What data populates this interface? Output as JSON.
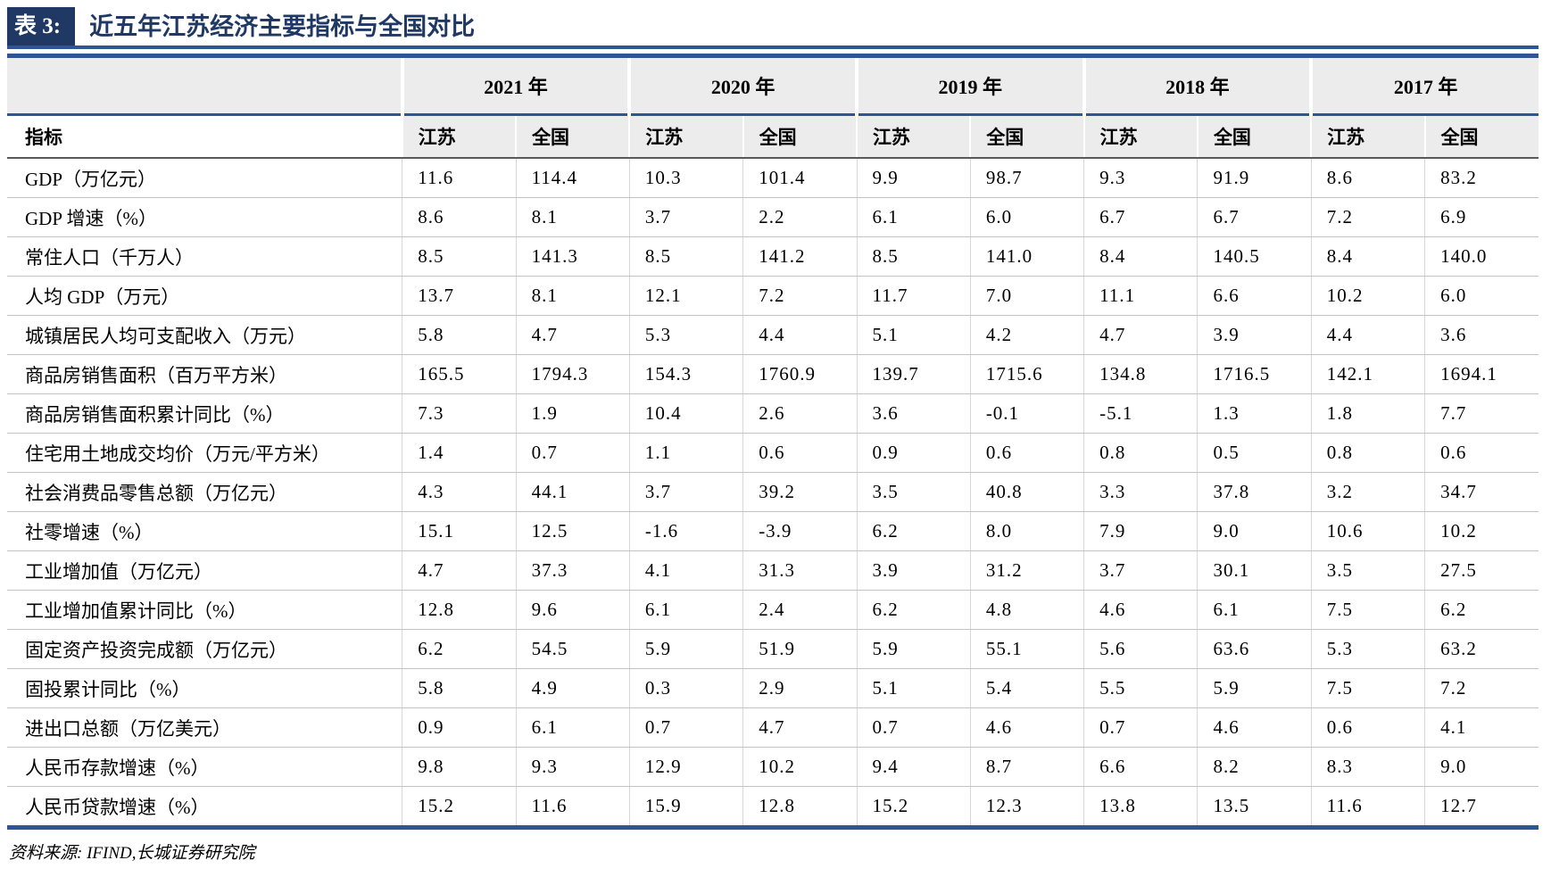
{
  "header": {
    "tag": "表 3:",
    "title": "近五年江苏经济主要指标与全国对比"
  },
  "table": {
    "years": [
      "2021 年",
      "2020 年",
      "2019 年",
      "2018 年",
      "2017 年"
    ],
    "indicator_header": "指标",
    "region_headers": [
      "江苏",
      "全国",
      "江苏",
      "全国",
      "江苏",
      "全国",
      "江苏",
      "全国",
      "江苏",
      "全国"
    ],
    "rows": [
      {
        "indicator": "GDP（万亿元）",
        "values": [
          "11.6",
          "114.4",
          "10.3",
          "101.4",
          "9.9",
          "98.7",
          "9.3",
          "91.9",
          "8.6",
          "83.2"
        ]
      },
      {
        "indicator": "GDP 增速（%）",
        "values": [
          "8.6",
          "8.1",
          "3.7",
          "2.2",
          "6.1",
          "6.0",
          "6.7",
          "6.7",
          "7.2",
          "6.9"
        ]
      },
      {
        "indicator": "常住人口（千万人）",
        "values": [
          "8.5",
          "141.3",
          "8.5",
          "141.2",
          "8.5",
          "141.0",
          "8.4",
          "140.5",
          "8.4",
          "140.0"
        ]
      },
      {
        "indicator": "人均 GDP（万元）",
        "values": [
          "13.7",
          "8.1",
          "12.1",
          "7.2",
          "11.7",
          "7.0",
          "11.1",
          "6.6",
          "10.2",
          "6.0"
        ]
      },
      {
        "indicator": "城镇居民人均可支配收入（万元）",
        "values": [
          "5.8",
          "4.7",
          "5.3",
          "4.4",
          "5.1",
          "4.2",
          "4.7",
          "3.9",
          "4.4",
          "3.6"
        ]
      },
      {
        "indicator": "商品房销售面积（百万平方米）",
        "values": [
          "165.5",
          "1794.3",
          "154.3",
          "1760.9",
          "139.7",
          "1715.6",
          "134.8",
          "1716.5",
          "142.1",
          "1694.1"
        ]
      },
      {
        "indicator": "商品房销售面积累计同比（%）",
        "values": [
          "7.3",
          "1.9",
          "10.4",
          "2.6",
          "3.6",
          "-0.1",
          "-5.1",
          "1.3",
          "1.8",
          "7.7"
        ]
      },
      {
        "indicator": "住宅用土地成交均价（万元/平方米）",
        "values": [
          "1.4",
          "0.7",
          "1.1",
          "0.6",
          "0.9",
          "0.6",
          "0.8",
          "0.5",
          "0.8",
          "0.6"
        ]
      },
      {
        "indicator": "社会消费品零售总额（万亿元）",
        "values": [
          "4.3",
          "44.1",
          "3.7",
          "39.2",
          "3.5",
          "40.8",
          "3.3",
          "37.8",
          "3.2",
          "34.7"
        ]
      },
      {
        "indicator": "社零增速（%）",
        "values": [
          "15.1",
          "12.5",
          "-1.6",
          "-3.9",
          "6.2",
          "8.0",
          "7.9",
          "9.0",
          "10.6",
          "10.2"
        ]
      },
      {
        "indicator": "工业增加值（万亿元）",
        "values": [
          "4.7",
          "37.3",
          "4.1",
          "31.3",
          "3.9",
          "31.2",
          "3.7",
          "30.1",
          "3.5",
          "27.5"
        ]
      },
      {
        "indicator": "工业增加值累计同比（%）",
        "values": [
          "12.8",
          "9.6",
          "6.1",
          "2.4",
          "6.2",
          "4.8",
          "4.6",
          "6.1",
          "7.5",
          "6.2"
        ]
      },
      {
        "indicator": "固定资产投资完成额（万亿元）",
        "values": [
          "6.2",
          "54.5",
          "5.9",
          "51.9",
          "5.9",
          "55.1",
          "5.6",
          "63.6",
          "5.3",
          "63.2"
        ]
      },
      {
        "indicator": "固投累计同比（%）",
        "values": [
          "5.8",
          "4.9",
          "0.3",
          "2.9",
          "5.1",
          "5.4",
          "5.5",
          "5.9",
          "7.5",
          "7.2"
        ]
      },
      {
        "indicator": "进出口总额（万亿美元）",
        "values": [
          "0.9",
          "6.1",
          "0.7",
          "4.7",
          "0.7",
          "4.6",
          "0.7",
          "4.6",
          "0.6",
          "4.1"
        ]
      },
      {
        "indicator": "人民币存款增速（%）",
        "values": [
          "9.8",
          "9.3",
          "12.9",
          "10.2",
          "9.4",
          "8.7",
          "6.6",
          "8.2",
          "8.3",
          "9.0"
        ]
      },
      {
        "indicator": "人民币贷款增速（%）",
        "values": [
          "15.2",
          "11.6",
          "15.9",
          "12.8",
          "15.2",
          "12.3",
          "13.8",
          "13.5",
          "11.6",
          "12.7"
        ]
      }
    ]
  },
  "footer": {
    "source": "资料来源: IFIND,长城证券研究院"
  },
  "colors": {
    "navy": "#1F3864",
    "line_blue": "#2F5597",
    "header_gray": "#ECECEC"
  }
}
